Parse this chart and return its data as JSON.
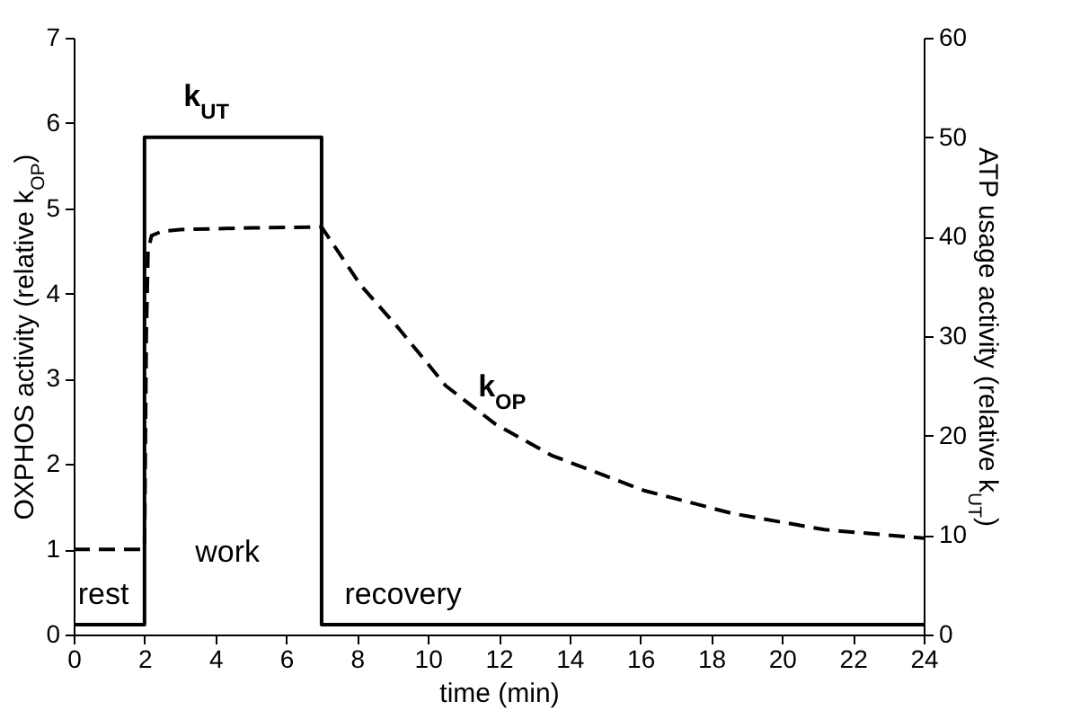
{
  "chart_data": {
    "type": "line",
    "xlabel": "time (min)",
    "ylabel": "OXPHOS activity (relative k$_{OP}$)",
    "y2label": "ATP usage activity (relative k$_{UT}$)",
    "xlim": [
      0,
      24
    ],
    "xticks": [
      0,
      2,
      4,
      6,
      8,
      10,
      12,
      14,
      16,
      18,
      20,
      22,
      24
    ],
    "ylim": [
      0,
      7
    ],
    "yticks": [
      0,
      1,
      2,
      3,
      4,
      5,
      6,
      7
    ],
    "y2lim": [
      0,
      60
    ],
    "y2ticks": [
      0,
      10,
      20,
      30,
      40,
      50,
      60
    ],
    "grid": false,
    "series": [
      {
        "axis": "y",
        "color": "#000000",
        "line_style": "dashed",
        "x": [
          0,
          2,
          2.05,
          2.1,
          2.2,
          2.5,
          3,
          5,
          7,
          8.1,
          9.2,
          10.5,
          11.9,
          13.5,
          16.1,
          18.6,
          21.2,
          24
        ],
        "values": [
          1,
          1,
          3.5,
          4.5,
          4.68,
          4.73,
          4.75,
          4.77,
          4.78,
          4.1,
          3.58,
          2.92,
          2.47,
          2.1,
          1.69,
          1.42,
          1.23,
          1.13
        ]
      },
      {
        "axis": "y2",
        "color": "#000000",
        "line_style": "solid",
        "x": [
          0,
          2,
          2,
          7,
          7,
          24
        ],
        "values": [
          1,
          1,
          50,
          50,
          1,
          1
        ]
      }
    ],
    "annotations": [
      "k$_{UT}$",
      "k$_{OP}$",
      "rest",
      "work",
      "recovery"
    ]
  }
}
